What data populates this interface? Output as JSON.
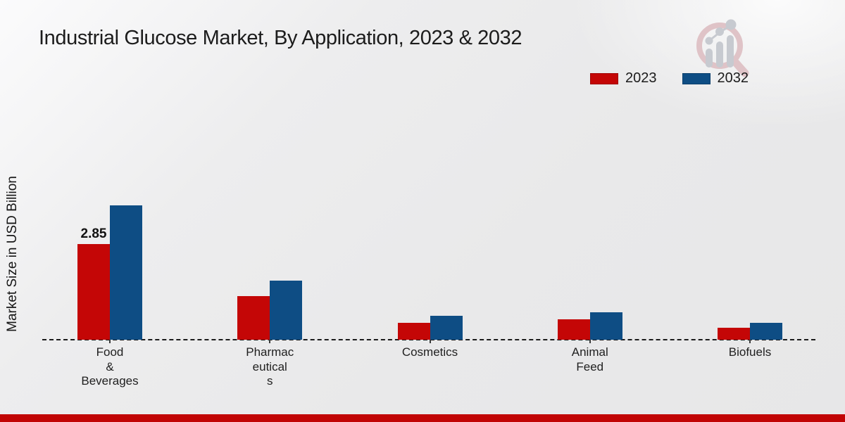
{
  "title": "Industrial Glucose Market, By Application, 2023 & 2032",
  "ylabel": "Market Size in USD Billion",
  "legend": [
    {
      "label": "2023",
      "color": "#c40606"
    },
    {
      "label": "2032",
      "color": "#0e4d84"
    }
  ],
  "footer": {
    "bar_color": "#c10404"
  },
  "watermark": {
    "icon": "magnifier-bar-chart-logo",
    "ring_color": "#dfc3c7",
    "bar_color": "#c7cad0"
  },
  "chart_data": {
    "type": "bar",
    "title": "Industrial Glucose Market, By Application, 2023 & 2032",
    "xlabel": "",
    "ylabel": "Market Size in USD Billion",
    "categories": [
      "Food & Beverages",
      "Pharmaceuticals",
      "Cosmetics",
      "Animal Feed",
      "Biofuels"
    ],
    "tick_labels_wrapped": [
      [
        "Food",
        "&",
        "Beverages"
      ],
      [
        "Pharmac",
        "eutical",
        "s"
      ],
      [
        "Cosmetics"
      ],
      [
        "Animal",
        "Feed"
      ],
      [
        "Biofuels"
      ]
    ],
    "series": [
      {
        "name": "2023",
        "color": "#c40606",
        "values": [
          2.85,
          1.3,
          0.5,
          0.6,
          0.36
        ]
      },
      {
        "name": "2032",
        "color": "#0e4d84",
        "values": [
          4.0,
          1.77,
          0.71,
          0.82,
          0.5
        ]
      }
    ],
    "annotations": [
      {
        "text": "2.85",
        "series": "2023",
        "category_index": 0
      }
    ],
    "unit": "USD Billion",
    "ylim": [
      0,
      4.5
    ],
    "grid": false,
    "legend_position": "top-right",
    "baseline_style": "dashed"
  }
}
